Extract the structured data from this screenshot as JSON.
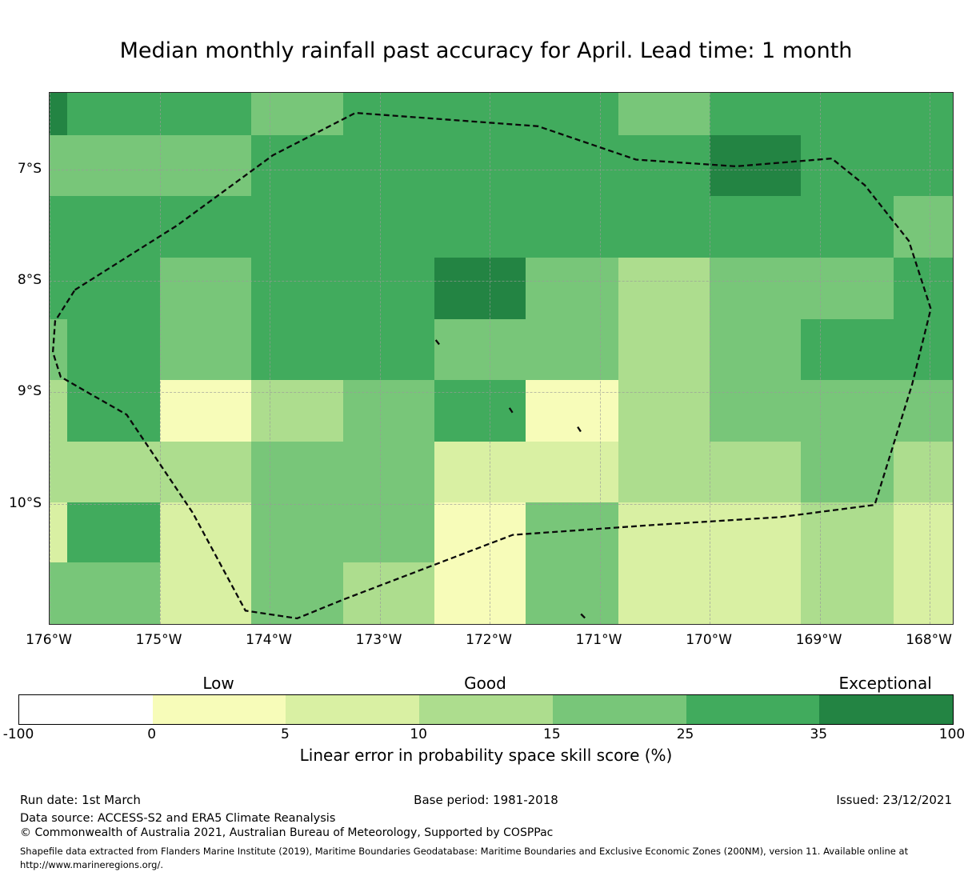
{
  "title": "Median monthly rainfall past accuracy for April. Lead time: 1 month",
  "chart_data": {
    "type": "heatmap",
    "title": "Median monthly rainfall past accuracy for April. Lead time: 1 month",
    "x_axis": {
      "label_suffix": "°W",
      "tick_labels": [
        "176°W",
        "175°W",
        "174°W",
        "173°W",
        "172°W",
        "171°W",
        "170°W",
        "169°W",
        "168°W"
      ],
      "tick_lons": [
        176,
        175,
        174,
        173,
        172,
        171,
        170,
        169,
        168
      ]
    },
    "y_axis": {
      "label_suffix": "°S",
      "tick_labels": [
        "7°S",
        "8°S",
        "9°S",
        "10°S"
      ],
      "tick_lats": [
        7,
        8,
        9,
        10
      ]
    },
    "lon_range": [
      176.0,
      167.79
    ],
    "lat_range": [
      6.31,
      11.08
    ],
    "grid": true,
    "lon_edges": [
      176.0,
      175.84,
      175.0,
      174.17,
      173.33,
      172.5,
      171.67,
      170.83,
      170.0,
      169.17,
      168.33,
      167.79
    ],
    "lat_edges": [
      6.31,
      6.69,
      7.24,
      7.79,
      8.34,
      8.89,
      9.44,
      9.99,
      10.53,
      11.08
    ],
    "bins": [
      {
        "range": "-100 to 0",
        "color": "#ffffff"
      },
      {
        "range": "0 to 5",
        "color": "#f7fcb9"
      },
      {
        "range": "5 to 10",
        "color": "#d9f0a3"
      },
      {
        "range": "10 to 15",
        "color": "#addd8e"
      },
      {
        "range": "15 to 25",
        "color": "#78c679"
      },
      {
        "range": "25 to 35",
        "color": "#41ab5d"
      },
      {
        "range": "35 to 100",
        "color": "#238443"
      }
    ],
    "cells": [
      [
        6,
        5,
        5,
        4,
        5,
        5,
        5,
        4,
        5,
        5,
        5
      ],
      [
        4,
        4,
        4,
        5,
        5,
        5,
        5,
        5,
        6,
        5,
        5
      ],
      [
        5,
        5,
        5,
        5,
        5,
        5,
        5,
        5,
        5,
        5,
        4
      ],
      [
        5,
        5,
        4,
        5,
        5,
        6,
        4,
        3,
        4,
        4,
        5
      ],
      [
        4,
        5,
        4,
        5,
        5,
        4,
        4,
        3,
        4,
        5,
        5
      ],
      [
        3,
        5,
        1,
        3,
        4,
        5,
        1,
        3,
        4,
        4,
        4
      ],
      [
        3,
        3,
        3,
        4,
        4,
        2,
        2,
        3,
        3,
        4,
        3
      ],
      [
        2,
        5,
        2,
        4,
        4,
        1,
        4,
        2,
        2,
        3,
        2
      ],
      [
        4,
        4,
        2,
        4,
        3,
        1,
        4,
        2,
        2,
        3,
        2
      ]
    ],
    "eez_boundary": [
      [
        175.77,
        8.08
      ],
      [
        174.84,
        7.5
      ],
      [
        173.97,
        6.87
      ],
      [
        173.22,
        6.49
      ],
      [
        171.56,
        6.61
      ],
      [
        170.67,
        6.91
      ],
      [
        169.76,
        6.97
      ],
      [
        168.89,
        6.9
      ],
      [
        168.59,
        7.14
      ],
      [
        168.19,
        7.64
      ],
      [
        167.99,
        8.25
      ],
      [
        168.16,
        8.93
      ],
      [
        168.5,
        10.01
      ],
      [
        169.36,
        10.12
      ],
      [
        170.5,
        10.19
      ],
      [
        171.79,
        10.28
      ],
      [
        173.33,
        10.86
      ],
      [
        173.75,
        11.03
      ],
      [
        174.22,
        10.96
      ],
      [
        174.7,
        10.08
      ],
      [
        175.3,
        9.2
      ],
      [
        175.62,
        9.02
      ],
      [
        175.9,
        8.86
      ],
      [
        175.97,
        8.64
      ],
      [
        175.95,
        8.36
      ],
      [
        175.77,
        8.08
      ]
    ],
    "eez_fragments": [
      [
        [
          172.49,
          8.53
        ],
        [
          172.45,
          8.58
        ]
      ],
      [
        [
          171.82,
          9.14
        ],
        [
          171.78,
          9.2
        ]
      ],
      [
        [
          171.2,
          9.31
        ],
        [
          171.16,
          9.37
        ]
      ],
      [
        [
          171.17,
          10.99
        ],
        [
          171.13,
          11.03
        ]
      ]
    ],
    "colorbar": {
      "tick_labels": [
        "-100",
        "0",
        "5",
        "10",
        "15",
        "25",
        "35",
        "100"
      ],
      "tick_values": [
        -100,
        0,
        5,
        10,
        15,
        25,
        35,
        100
      ],
      "qualitative_labels": [
        {
          "text": "Low",
          "segment_center": 1
        },
        {
          "text": "Good",
          "segment_center": 3
        },
        {
          "text": "Exceptional",
          "segment_center": 6
        }
      ],
      "xlabel": "Linear error in probability space skill score (%)"
    },
    "legend_position": "bottom"
  },
  "footer": {
    "run_date": "Run date: 1st March",
    "base_period": "Base period: 1981-2018",
    "issued": "Issued: 23/12/2021",
    "data_source": "Data source: ACCESS-S2 and ERA5 Climate Reanalysis",
    "copyright": "© Commonwealth of Australia 2021, Australian Bureau of Meteorology, Supported by COSPPac",
    "shapefile_note": "Shapefile data extracted from Flanders Marine Institute (2019), Maritime Boundaries Geodatabase: Maritime Boundaries and Exclusive Economic Zones (200NM), version 11. Available online at http://www.marineregions.org/."
  }
}
